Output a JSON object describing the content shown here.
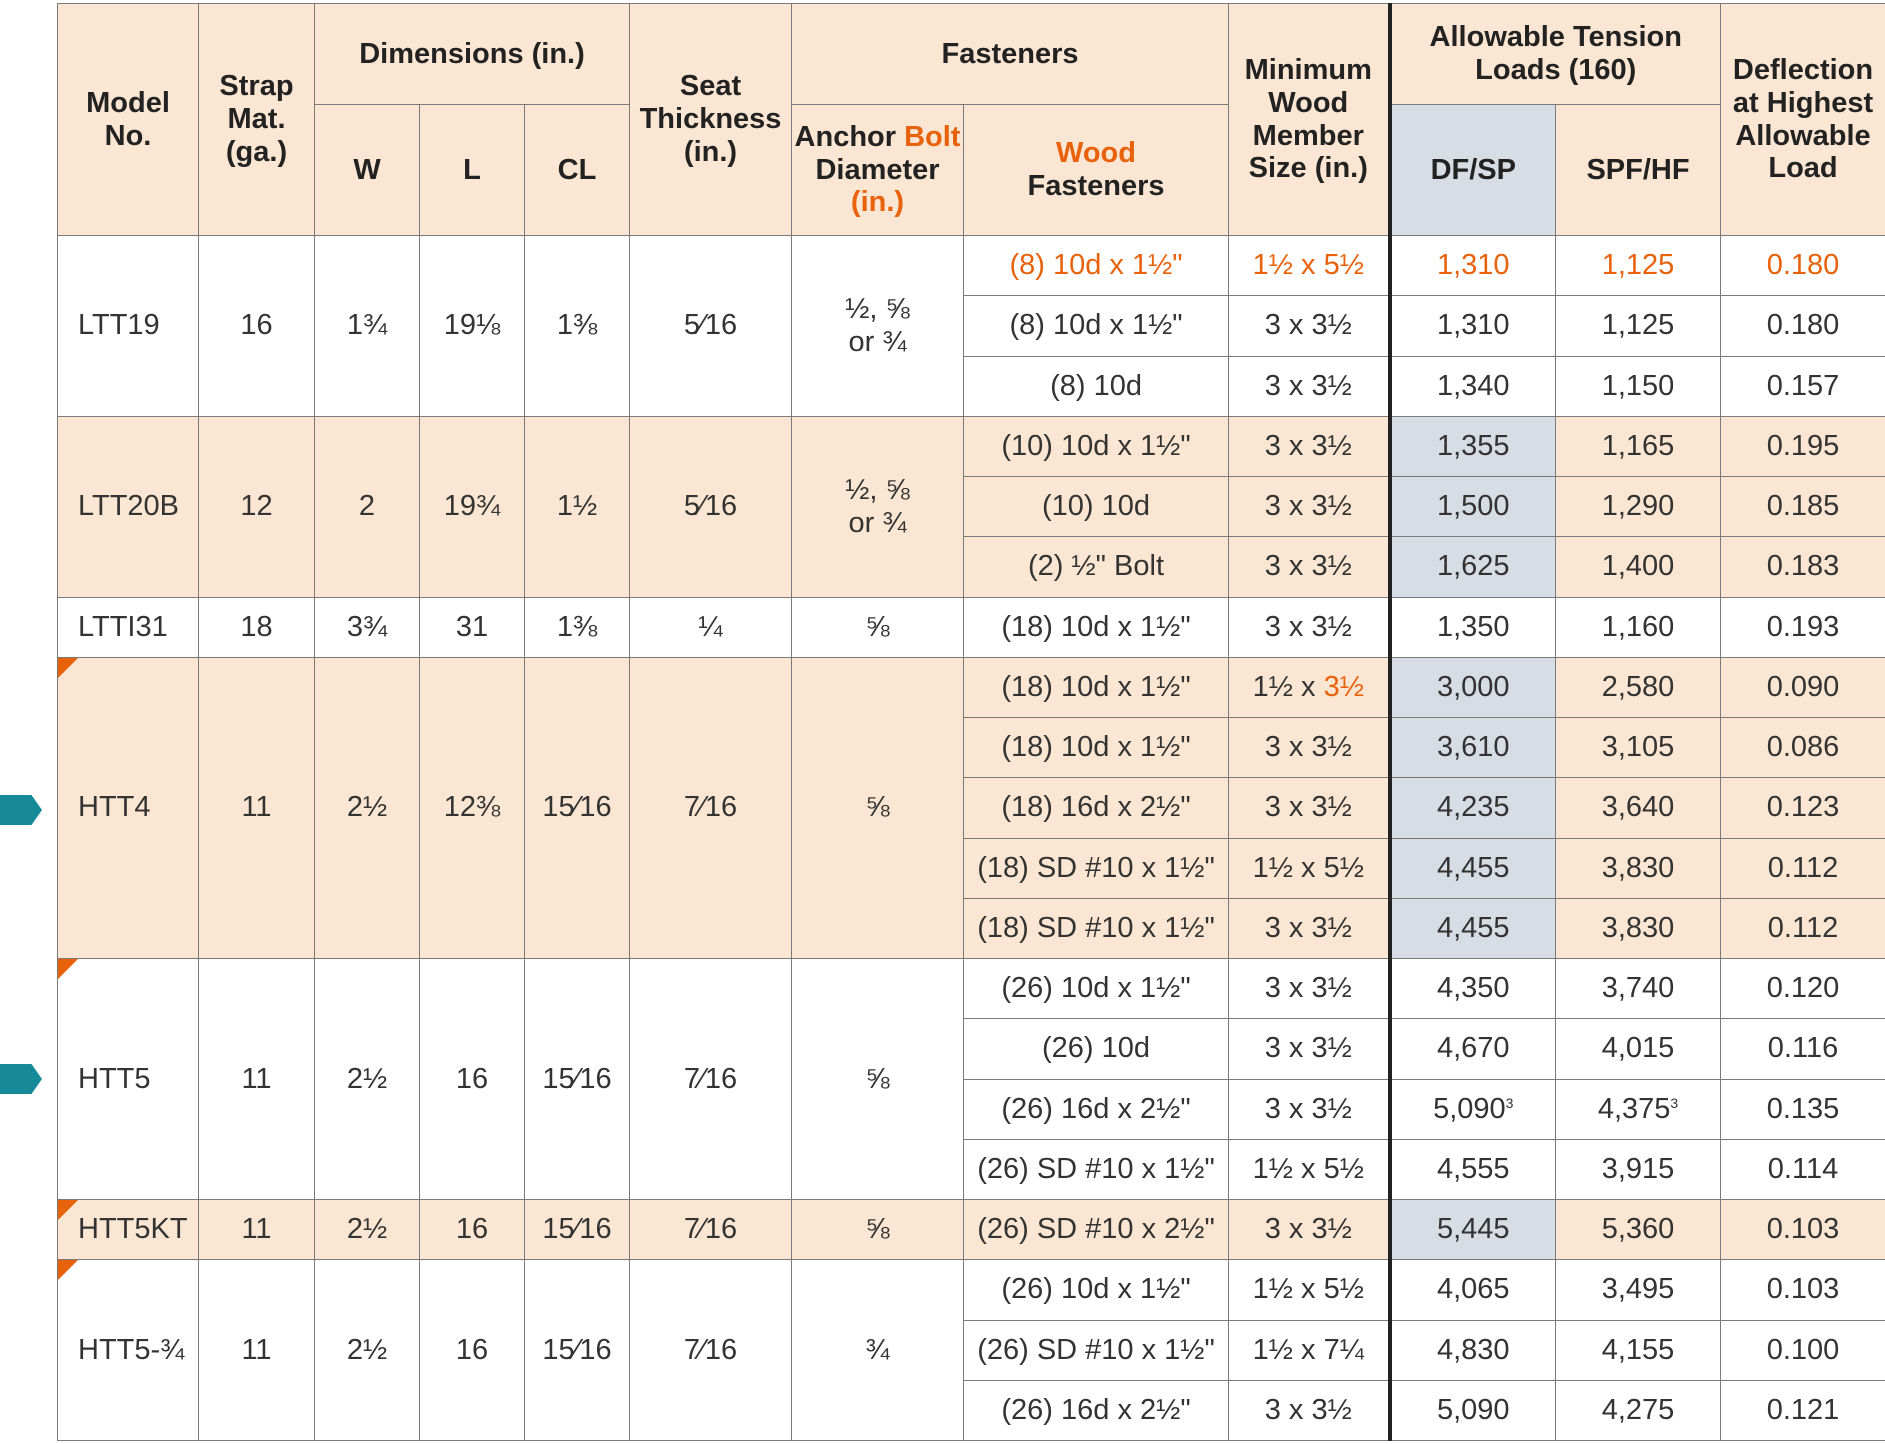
{
  "headers": {
    "model": "Model No.",
    "strap": "Strap Mat. (ga.)",
    "dimensions": "Dimensions (in.)",
    "w": "W",
    "l": "L",
    "cl": "CL",
    "seat": "Seat Thickness (in.)",
    "fasteners": "Fasteners",
    "anchor_a": "Anchor ",
    "anchor_b": "Bolt",
    "anchor_c": "Diameter",
    "anchor_d": "(in.)",
    "wood_a": "Wood",
    "wood_b": "Fasteners",
    "min_wood": "Minimum Wood Member Size (in.)",
    "allowable": "Allowable Tension Loads (160)",
    "dfsp": "DF/SP",
    "spfhf": "SPF/HF",
    "deflection": "Deflection at Highest Allowable Load"
  },
  "models": [
    {
      "model": "LTT19",
      "strap": "16",
      "w": "1¾",
      "l": "19⅛",
      "cl": "1⅜",
      "seat": "5⁄16",
      "anchor": "½, ⅝ or ¾"
    },
    {
      "model": "LTT20B",
      "strap": "12",
      "w": "2",
      "l": "19¾",
      "cl": "1½",
      "seat": "5⁄16",
      "anchor": "½, ⅝ or ¾"
    },
    {
      "model": "LTTI31",
      "strap": "18",
      "w": "3¾",
      "l": "31",
      "cl": "1⅜",
      "seat": "¼",
      "anchor": "⅝"
    },
    {
      "model": "HTT4",
      "strap": "11",
      "w": "2½",
      "l": "12⅜",
      "cl": "15⁄16",
      "seat": "7⁄16",
      "anchor": "⅝"
    },
    {
      "model": "HTT5",
      "strap": "11",
      "w": "2½",
      "l": "16",
      "cl": "15⁄16",
      "seat": "7⁄16",
      "anchor": "⅝"
    },
    {
      "model": "HTT5KT",
      "strap": "11",
      "w": "2½",
      "l": "16",
      "cl": "15⁄16",
      "seat": "7⁄16",
      "anchor": "⅝"
    },
    {
      "model": "HTT5-¾",
      "strap": "11",
      "w": "2½",
      "l": "16",
      "cl": "15⁄16",
      "seat": "7⁄16",
      "anchor": "¾"
    }
  ],
  "rows": [
    {
      "wood": "(8) 10d x 1½\"",
      "min": "1½ x 5½",
      "df": "1,310",
      "spf": "1,125",
      "defl": "0.180"
    },
    {
      "wood": "(8) 10d x 1½\"",
      "min": "3 x 3½",
      "df": "1,310",
      "spf": "1,125",
      "defl": "0.180"
    },
    {
      "wood": "(8) 10d",
      "min": "3 x 3½",
      "df": "1,340",
      "spf": "1,150",
      "defl": "0.157"
    },
    {
      "wood": "(10) 10d x 1½\"",
      "min": "3 x 3½",
      "df": "1,355",
      "spf": "1,165",
      "defl": "0.195"
    },
    {
      "wood": "(10) 10d",
      "min": "3 x 3½",
      "df": "1,500",
      "spf": "1,290",
      "defl": "0.185"
    },
    {
      "wood": "(2) ½\" Bolt",
      "min": "3 x 3½",
      "df": "1,625",
      "spf": "1,400",
      "defl": "0.183"
    },
    {
      "wood": "(18) 10d x 1½\"",
      "min": "3 x 3½",
      "df": "1,350",
      "spf": "1,160",
      "defl": "0.193"
    },
    {
      "wood": "(18) 10d x 1½\"",
      "min_a": "1½ x ",
      "min_b": "3½",
      "df": "3,000",
      "spf": "2,580",
      "defl": "0.090"
    },
    {
      "wood": "(18) 10d x 1½\"",
      "min": "3 x 3½",
      "df": "3,610",
      "spf": "3,105",
      "defl": "0.086"
    },
    {
      "wood": "(18) 16d x 2½\"",
      "min": "3 x 3½",
      "df": "4,235",
      "spf": "3,640",
      "defl": "0.123"
    },
    {
      "wood": "(18) SD #10 x 1½\"",
      "min": "1½ x 5½",
      "df": "4,455",
      "spf": "3,830",
      "defl": "0.112"
    },
    {
      "wood": "(18) SD #10 x 1½\"",
      "min": "3 x 3½",
      "df": "4,455",
      "spf": "3,830",
      "defl": "0.112"
    },
    {
      "wood": "(26) 10d x 1½\"",
      "min": "3 x 3½",
      "df": "4,350",
      "spf": "3,740",
      "defl": "0.120"
    },
    {
      "wood": "(26) 10d",
      "min": "3 x 3½",
      "df": "4,670",
      "spf": "4,015",
      "defl": "0.116"
    },
    {
      "wood": "(26) 16d x 2½\"",
      "min": "3 x 3½",
      "df": "5,090",
      "df_sup": "3",
      "spf": "4,375",
      "spf_sup": "3",
      "defl": "0.135"
    },
    {
      "wood": "(26) SD #10 x 1½\"",
      "min": "1½ x 5½",
      "df": "4,555",
      "spf": "3,915",
      "defl": "0.114"
    },
    {
      "wood": "(26) SD #10 x 2½\"",
      "min": "3 x 3½",
      "df": "5,445",
      "spf": "5,360",
      "defl": "0.103"
    },
    {
      "wood": "(26) 10d x 1½\"",
      "min": "1½ x 5½",
      "df": "4,065",
      "spf": "3,495",
      "defl": "0.103"
    },
    {
      "wood": "(26) SD #10 x 1½\"",
      "min": "1½ x 7¼",
      "df": "4,830",
      "spf": "4,155",
      "defl": "0.100"
    },
    {
      "wood": "(26) 16d x 2½\"",
      "min": "3 x 3½",
      "df": "5,090",
      "spf": "4,275",
      "defl": "0.121"
    }
  ],
  "colors": {
    "tint": "#fae6d2",
    "blue_cell": "#d6dde4",
    "orange": "#e8620c",
    "teal_flag": "#168a99"
  }
}
